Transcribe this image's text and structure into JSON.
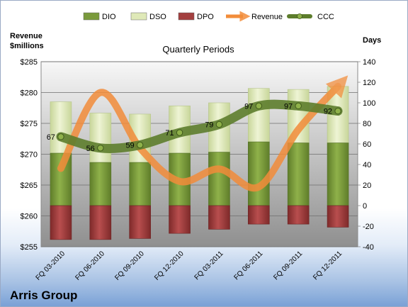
{
  "chart_data": {
    "type": "bar",
    "title": "Quarterly Periods",
    "company": "Arris Group",
    "left_axis_title": [
      "Revenue",
      "$millions"
    ],
    "right_axis_title": "Days",
    "categories": [
      "FQ 03-2010",
      "FQ 06-2010",
      "FQ 09-2010",
      "FQ 12-2010",
      "FQ 03-2011",
      "FQ 06-2011",
      "FQ 09-2011",
      "FQ 12-2011"
    ],
    "left_axis": {
      "min": 255,
      "max": 285,
      "ticks": [
        "$255",
        "$260",
        "$265",
        "$270",
        "$275",
        "$280",
        "$285"
      ]
    },
    "right_axis": {
      "min": -40,
      "max": 140,
      "ticks": [
        "-40",
        "-20",
        "0",
        "20",
        "40",
        "60",
        "80",
        "100",
        "120",
        "140"
      ]
    },
    "legend_position": "top",
    "legend": [
      {
        "label": "DIO",
        "symbol": "bar",
        "color": "#7a9a3c"
      },
      {
        "label": "DSO",
        "symbol": "bar",
        "color": "#dfe9b8"
      },
      {
        "label": "DPO",
        "symbol": "bar",
        "color": "#a33f3f"
      },
      {
        "label": "Revenue",
        "symbol": "arrow",
        "color": "#f28c3a"
      },
      {
        "label": "CCC",
        "symbol": "line",
        "color": "#5d7d2c"
      }
    ],
    "series": [
      {
        "name": "DIO",
        "axis": "right",
        "kind": "stacked-bar",
        "color": "#7a9a3c",
        "values": [
          51,
          42,
          42,
          51,
          52,
          62,
          61,
          61
        ]
      },
      {
        "name": "DSO",
        "axis": "right",
        "kind": "stacked-bar",
        "color": "#dfe9b8",
        "values": [
          50,
          48,
          47,
          46,
          48,
          52,
          52,
          55
        ]
      },
      {
        "name": "DPO",
        "axis": "right",
        "kind": "negative-bar",
        "color": "#a33f3f",
        "values": [
          -33,
          -33,
          -32,
          -27,
          -23,
          -18,
          -18,
          -21
        ]
      },
      {
        "name": "Revenue",
        "axis": "left",
        "kind": "smooth-arrow",
        "color": "#f28c3a",
        "values": [
          267.7,
          280,
          271,
          265.6,
          267.6,
          264.7,
          274,
          281
        ]
      },
      {
        "name": "CCC",
        "axis": "right",
        "kind": "line",
        "color": "#5d7d2c",
        "values": [
          67,
          56,
          59,
          71,
          79,
          97,
          97,
          92
        ],
        "labels": [
          "67",
          "56",
          "59",
          "71",
          "79",
          "97",
          "97",
          "92"
        ]
      }
    ],
    "grid": true
  }
}
